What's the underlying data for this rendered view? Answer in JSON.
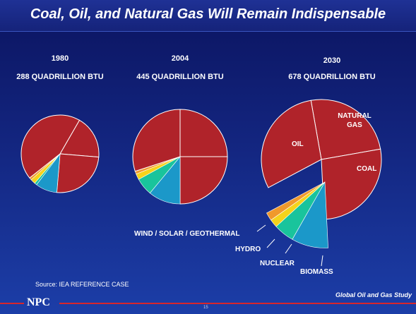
{
  "title": "Coal, Oil, and Natural Gas Will Remain Indispensable",
  "source": "Source: IEA REFERENCE CASE",
  "footer": {
    "logo": "NPC",
    "study": "Global Oil and Gas Study",
    "page": "15"
  },
  "chart_data": [
    {
      "type": "pie",
      "title": "1980",
      "subtitle": "288 QUADRILLION BTU",
      "values": [
        18,
        25,
        9,
        1,
        2,
        1,
        44
      ],
      "colors": [
        "#b0232a",
        "#b0232a",
        "#1b98c9",
        "#19c49c",
        "#f5d31b",
        "#f0992c",
        "#b0232a"
      ]
    },
    {
      "type": "pie",
      "title": "2004",
      "subtitle": "445 QUADRILLION BTU",
      "values": [
        25,
        25,
        11,
        6,
        2,
        1,
        30
      ],
      "colors": [
        "#b0232a",
        "#b0232a",
        "#1b98c9",
        "#19c49c",
        "#f5d31b",
        "#f0992c",
        "#b0232a"
      ]
    },
    {
      "type": "pie",
      "title": "2030",
      "subtitle": "678 QUADRILLION BTU",
      "categories": [
        "NATURAL GAS",
        "COAL",
        "BIOMASS",
        "NUCLEAR",
        "HYDRO",
        "WIND / SOLAR / GEOTHERMAL",
        "OIL"
      ],
      "values": [
        25,
        27,
        9,
        5,
        2,
        2,
        30
      ],
      "colors": [
        "#b0232a",
        "#b0232a",
        "#1b98c9",
        "#19c49c",
        "#f5d31b",
        "#f0992c",
        "#b0232a"
      ]
    }
  ]
}
